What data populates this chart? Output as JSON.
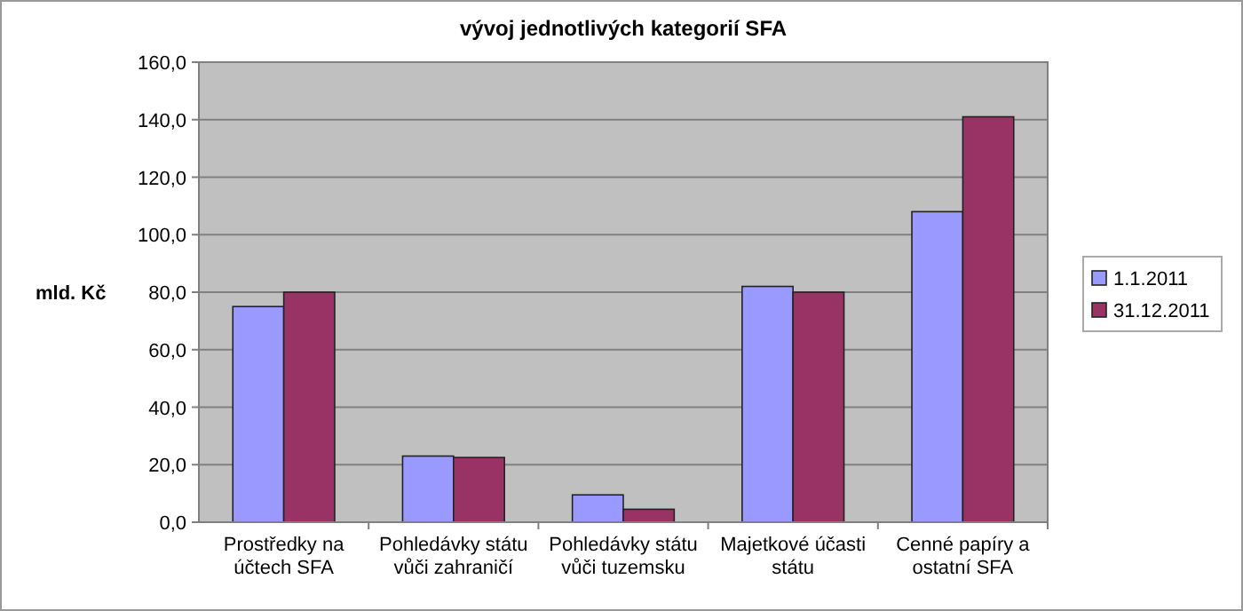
{
  "chart_data": {
    "type": "bar",
    "title": "vývoj jednotlivých kategorií SFA",
    "ylabel": "mld. Kč",
    "categories": [
      "Prostředky na účtech SFA",
      "Pohledávky státu vůči zahraničí",
      "Pohledávky státu vůči tuzemsku",
      "Majetkové účasti státu",
      "Cenné papíry a ostatní SFA"
    ],
    "series": [
      {
        "name": "1.1.2011",
        "color": "#9999ff",
        "values": [
          75,
          23,
          9.5,
          82,
          108
        ]
      },
      {
        "name": "31.12.2011",
        "color": "#993366",
        "values": [
          80,
          22.5,
          4.5,
          80,
          141
        ]
      }
    ],
    "ylim": [
      0,
      160
    ],
    "yticks": [
      {
        "value": 0,
        "label": "0,0"
      },
      {
        "value": 20,
        "label": "20,0"
      },
      {
        "value": 40,
        "label": "40,0"
      },
      {
        "value": 60,
        "label": "60,0"
      },
      {
        "value": 80,
        "label": "80,0"
      },
      {
        "value": 100,
        "label": "100,0"
      },
      {
        "value": 120,
        "label": "120,0"
      },
      {
        "value": 140,
        "label": "140,0"
      },
      {
        "value": 160,
        "label": "160,0"
      }
    ],
    "grid": "y",
    "legend": "right"
  }
}
